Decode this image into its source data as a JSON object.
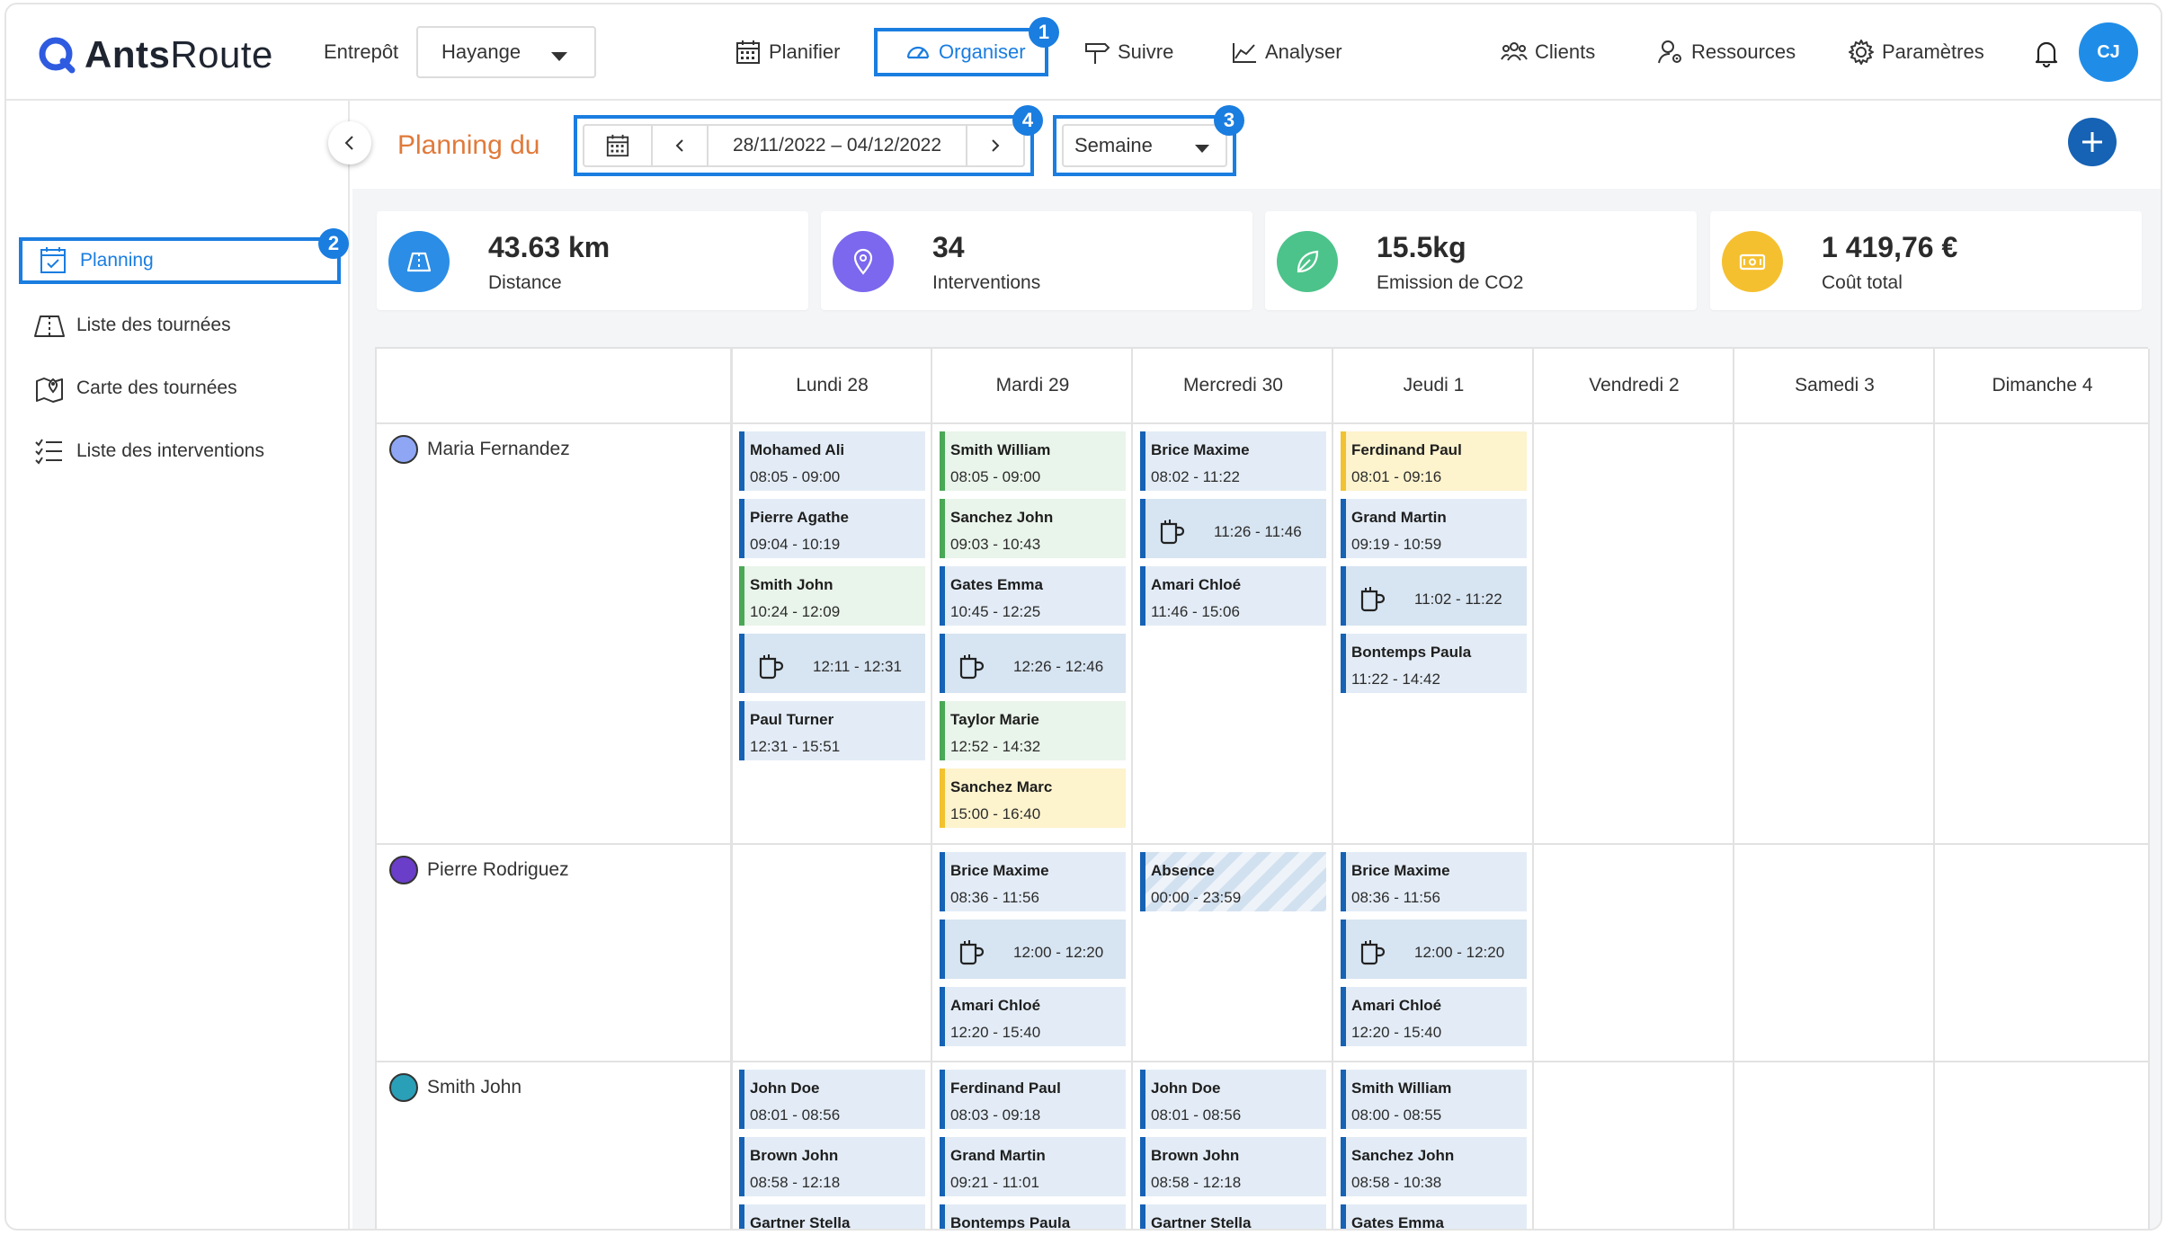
{
  "app": {
    "brand_bold": "Ants",
    "brand_thin": "Route"
  },
  "header": {
    "entrepot_label": "Entrepôt",
    "entrepot_value": "Hayange",
    "nav": {
      "planifier": "Planifier",
      "organiser": "Organiser",
      "suivre": "Suivre",
      "analyser": "Analyser",
      "clients": "Clients",
      "ressources": "Ressources",
      "parametres": "Paramètres"
    },
    "avatar_initials": "CJ"
  },
  "badges": {
    "b1": "1",
    "b2": "2",
    "b3": "3",
    "b4": "4"
  },
  "sidebar": {
    "planning": "Planning",
    "liste_tournees": "Liste des tournées",
    "carte_tournees": "Carte des tournées",
    "liste_interventions": "Liste des interventions"
  },
  "toolbar": {
    "title": "Planning du",
    "date_range": "28/11/2022 – 04/12/2022",
    "view": "Semaine"
  },
  "stats": [
    {
      "value": "43.63 km",
      "label": "Distance",
      "color": "#2b8de6",
      "icon": "map-icon"
    },
    {
      "value": "34",
      "label": "Interventions",
      "color": "#7b68ee",
      "icon": "pin-icon"
    },
    {
      "value": "15.5kg",
      "label": "Emission de CO2",
      "color": "#4cc38a",
      "icon": "leaf-icon"
    },
    {
      "value": "1 419,76 €",
      "label": "Coût total",
      "color": "#f5c030",
      "icon": "money-icon"
    }
  ],
  "days": [
    "Lundi 28",
    "Mardi 29",
    "Mercredi 30",
    "Jeudi 1",
    "Vendredi 2",
    "Samedi 3",
    "Dimanche 4"
  ],
  "resources": [
    {
      "name": "Maria Fernandez",
      "color": "#8fa6f5",
      "days": [
        [
          {
            "t": "visit",
            "c": "blue",
            "name": "Mohamed Ali",
            "time": "08:05 - 09:00"
          },
          {
            "t": "visit",
            "c": "blue",
            "name": "Pierre Agathe",
            "time": "09:04 - 10:19"
          },
          {
            "t": "visit",
            "c": "green",
            "name": "Smith John",
            "time": "10:24 - 12:09"
          },
          {
            "t": "break",
            "time": "12:11 - 12:31"
          },
          {
            "t": "visit",
            "c": "blue",
            "name": "Paul Turner",
            "time": "12:31 - 15:51"
          }
        ],
        [
          {
            "t": "visit",
            "c": "green",
            "name": "Smith William",
            "time": "08:05 - 09:00"
          },
          {
            "t": "visit",
            "c": "green",
            "name": "Sanchez John",
            "time": "09:03 - 10:43"
          },
          {
            "t": "visit",
            "c": "blue",
            "name": "Gates Emma",
            "time": "10:45 - 12:25"
          },
          {
            "t": "break",
            "time": "12:26 - 12:46"
          },
          {
            "t": "visit",
            "c": "green",
            "name": "Taylor Marie",
            "time": "12:52 - 14:32"
          },
          {
            "t": "visit",
            "c": "yellow",
            "name": "Sanchez Marc",
            "time": "15:00 - 16:40"
          }
        ],
        [
          {
            "t": "visit",
            "c": "blue",
            "name": "Brice Maxime",
            "time": "08:02 - 11:22"
          },
          {
            "t": "break",
            "time": "11:26 - 11:46"
          },
          {
            "t": "visit",
            "c": "blue",
            "name": "Amari Chloé",
            "time": "11:46 - 15:06"
          }
        ],
        [
          {
            "t": "visit",
            "c": "yellow",
            "name": "Ferdinand Paul",
            "time": "08:01 - 09:16"
          },
          {
            "t": "visit",
            "c": "blue",
            "name": "Grand Martin",
            "time": "09:19 - 10:59"
          },
          {
            "t": "break",
            "time": "11:02 - 11:22"
          },
          {
            "t": "visit",
            "c": "blue",
            "name": "Bontemps Paula",
            "time": "11:22 - 14:42"
          }
        ],
        [],
        [],
        []
      ]
    },
    {
      "name": "Pierre Rodriguez",
      "color": "#6a3ec8",
      "days": [
        [],
        [
          {
            "t": "visit",
            "c": "blue",
            "name": "Brice Maxime",
            "time": "08:36 - 11:56"
          },
          {
            "t": "break",
            "time": "12:00 - 12:20"
          },
          {
            "t": "visit",
            "c": "blue",
            "name": "Amari Chloé",
            "time": "12:20 - 15:40"
          }
        ],
        [
          {
            "t": "absence",
            "name": "Absence",
            "time": "00:00 - 23:59"
          }
        ],
        [
          {
            "t": "visit",
            "c": "blue",
            "name": "Brice Maxime",
            "time": "08:36 - 11:56"
          },
          {
            "t": "break",
            "time": "12:00 - 12:20"
          },
          {
            "t": "visit",
            "c": "blue",
            "name": "Amari Chloé",
            "time": "12:20 - 15:40"
          }
        ],
        [],
        [],
        []
      ]
    },
    {
      "name": "Smith John",
      "color": "#2a9fb8",
      "days": [
        [
          {
            "t": "visit",
            "c": "blue",
            "name": "John Doe",
            "time": "08:01 - 08:56"
          },
          {
            "t": "visit",
            "c": "blue",
            "name": "Brown John",
            "time": "08:58 - 12:18"
          },
          {
            "t": "visit",
            "c": "blue",
            "name": "Gartner Stella",
            "time": ""
          }
        ],
        [
          {
            "t": "visit",
            "c": "blue",
            "name": "Ferdinand Paul",
            "time": "08:03 - 09:18"
          },
          {
            "t": "visit",
            "c": "blue",
            "name": "Grand Martin",
            "time": "09:21 - 11:01"
          },
          {
            "t": "visit",
            "c": "blue",
            "name": "Bontemps Paula",
            "time": ""
          }
        ],
        [
          {
            "t": "visit",
            "c": "blue",
            "name": "John Doe",
            "time": "08:01 - 08:56"
          },
          {
            "t": "visit",
            "c": "blue",
            "name": "Brown John",
            "time": "08:58 - 12:18"
          },
          {
            "t": "visit",
            "c": "blue",
            "name": "Gartner Stella",
            "time": ""
          }
        ],
        [
          {
            "t": "visit",
            "c": "blue",
            "name": "Smith William",
            "time": "08:00 - 08:55"
          },
          {
            "t": "visit",
            "c": "blue",
            "name": "Sanchez John",
            "time": "08:58 - 10:38"
          },
          {
            "t": "visit",
            "c": "blue",
            "name": "Gates Emma",
            "time": ""
          }
        ],
        [],
        [],
        []
      ]
    }
  ]
}
